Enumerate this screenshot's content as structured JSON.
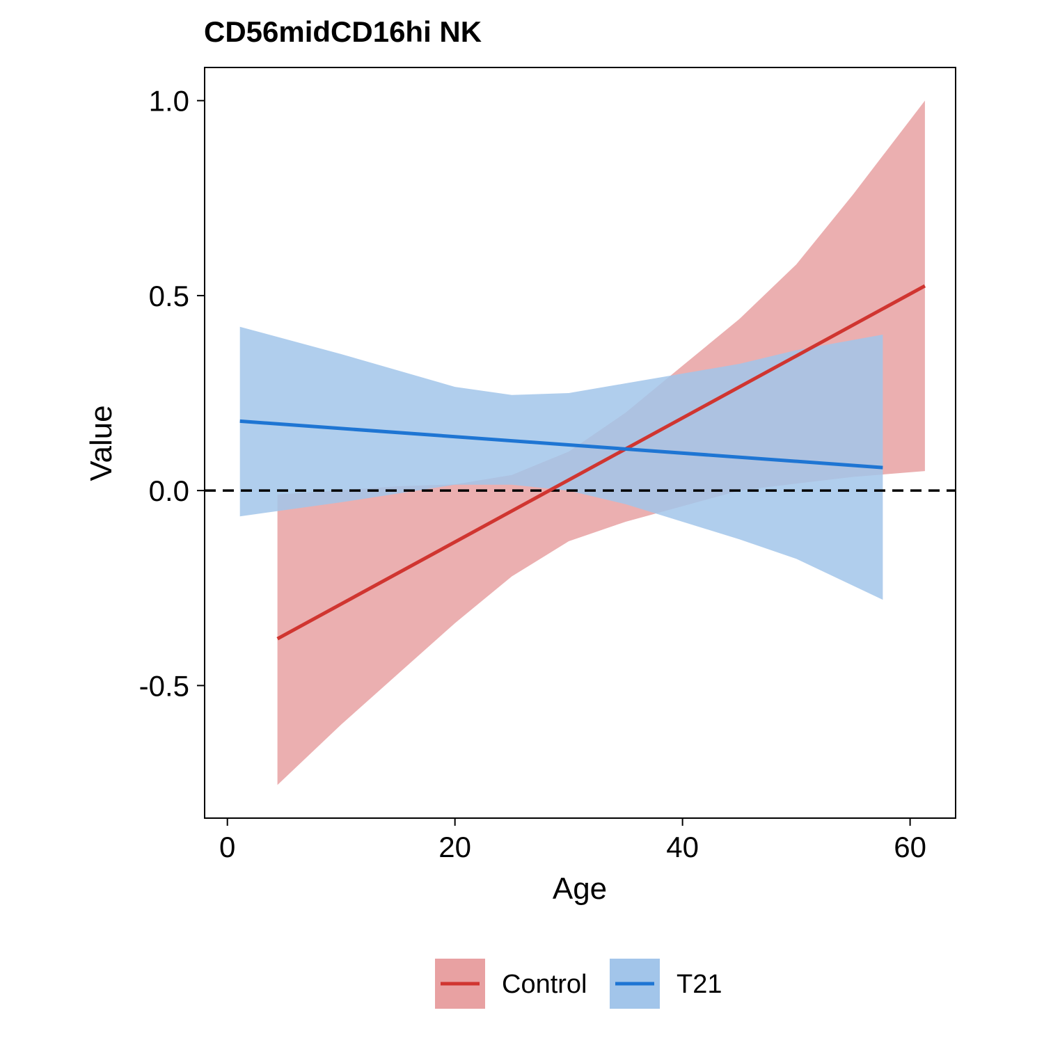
{
  "chart_data": {
    "type": "line",
    "title": "CD56midCD16hi NK",
    "xlabel": "Age",
    "ylabel": "Value",
    "xlim": [
      -2,
      64
    ],
    "ylim": [
      -0.84,
      1.085
    ],
    "x_ticks": [
      0,
      20,
      40,
      60
    ],
    "y_ticks": [
      -0.5,
      0.0,
      0.5,
      1.0
    ],
    "x_tick_labels": [
      "0",
      "20",
      "40",
      "60"
    ],
    "y_tick_labels": [
      "-0.5",
      "0.0",
      "0.5",
      "1.0"
    ],
    "reference_line": {
      "y": 0.0,
      "style": "dashed",
      "color": "#000000"
    },
    "grid": false,
    "legend_position": "bottom",
    "series": [
      {
        "name": "Control",
        "color": "#D03530",
        "band_color": "#E8A1A2",
        "line": {
          "x": [
            4.4,
            61.3
          ],
          "y": [
            -0.38,
            0.525
          ]
        },
        "band": {
          "x": [
            4.4,
            10,
            15,
            20,
            25,
            30,
            35,
            40,
            45,
            50,
            55,
            61.3
          ],
          "upper": [
            -0.01,
            0.001,
            0.011,
            0.016,
            0.04,
            0.1,
            0.2,
            0.32,
            0.44,
            0.58,
            0.76,
            1.0
          ],
          "lower": [
            -0.755,
            -0.6,
            -0.47,
            -0.34,
            -0.22,
            -0.13,
            -0.08,
            -0.04,
            0.0,
            0.018,
            0.035,
            0.05
          ]
        }
      },
      {
        "name": "T21",
        "color": "#1E75D3",
        "band_color": "#A2C5EA",
        "line": {
          "x": [
            1.1,
            57.6
          ],
          "y": [
            0.178,
            0.059
          ]
        },
        "band": {
          "x": [
            1.1,
            10,
            20,
            25,
            30,
            35,
            40,
            45,
            50,
            57.6
          ],
          "upper": [
            0.42,
            0.35,
            0.266,
            0.245,
            0.25,
            0.275,
            0.3,
            0.325,
            0.36,
            0.4
          ],
          "lower": [
            -0.066,
            -0.03,
            0.015,
            0.015,
            0.0,
            -0.035,
            -0.08,
            -0.125,
            -0.175,
            -0.28
          ]
        }
      }
    ]
  }
}
